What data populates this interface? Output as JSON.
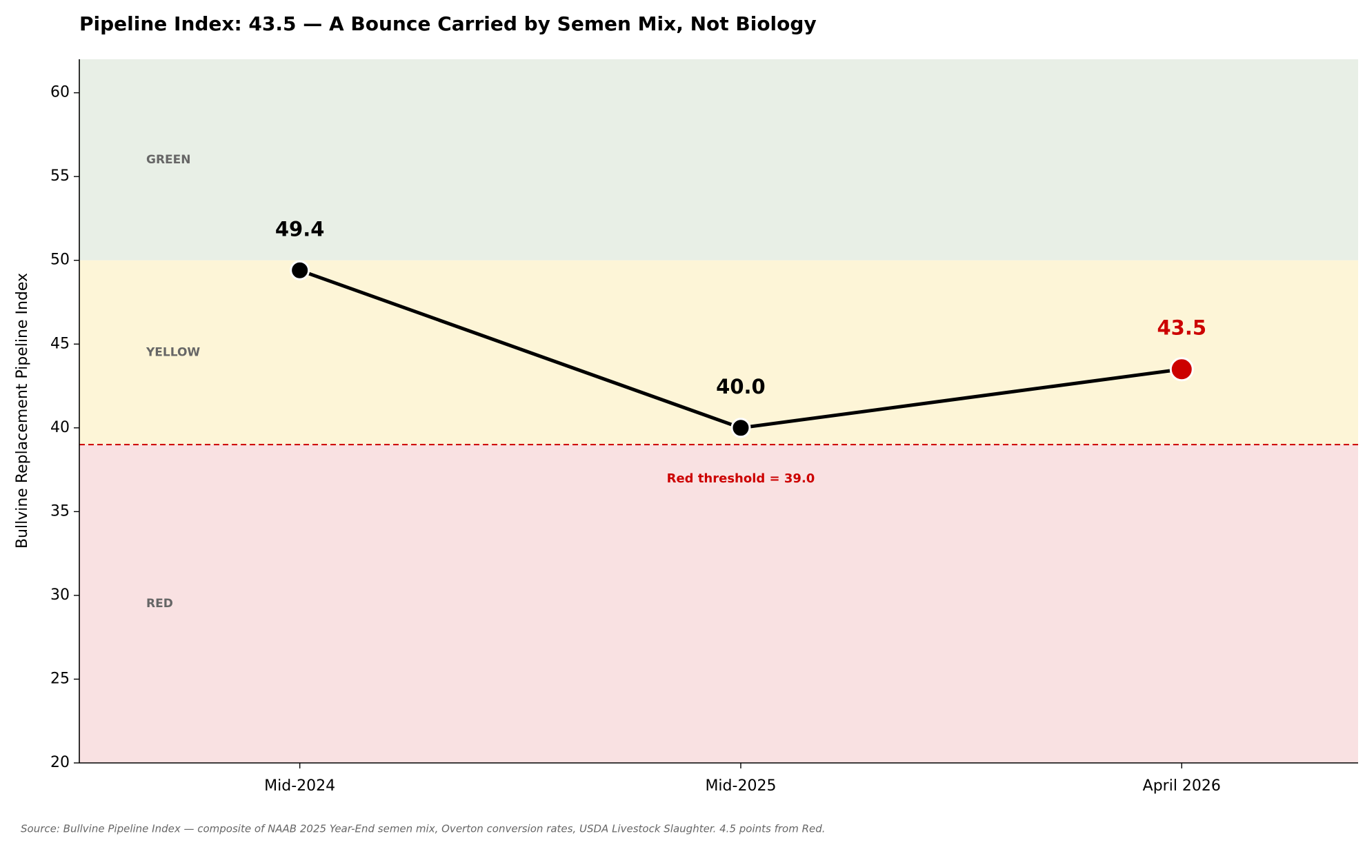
{
  "chart_data": {
    "type": "line",
    "title": "Pipeline Index: 43.5 — A Bounce Carried by Semen Mix, Not Biology",
    "y_label": "Bullvine Replacement Pipeline Index",
    "source": "Source: Bullvine Pipeline Index — composite of NAAB 2025 Year-End semen mix, Overton conversion rates, USDA Livestock Slaughter. 4.5 points from Red.",
    "categories": [
      "Mid-2024",
      "Mid-2025",
      "April 2026"
    ],
    "series": [
      {
        "name": "Pipeline Index",
        "color": "#000000",
        "values": [
          49.4,
          40.0,
          43.5
        ],
        "value_labels": [
          "49.4",
          "40.0",
          "43.5"
        ],
        "point_colors": [
          "#000000",
          "#000000",
          "#cc0000"
        ]
      }
    ],
    "ylim": [
      20,
      62
    ],
    "yticks": [
      20,
      25,
      30,
      35,
      40,
      45,
      50,
      55,
      60
    ],
    "zones": [
      {
        "name": "GREEN",
        "from": 50,
        "to": 62,
        "color": "#e8efe6"
      },
      {
        "name": "YELLOW",
        "from": 39,
        "to": 50,
        "color": "#fdf5d7"
      },
      {
        "name": "RED",
        "from": 20,
        "to": 39,
        "color": "#f9e1e2"
      }
    ],
    "threshold": {
      "value": 39.0,
      "label": "Red threshold = 39.0",
      "color": "#cc0000"
    }
  }
}
